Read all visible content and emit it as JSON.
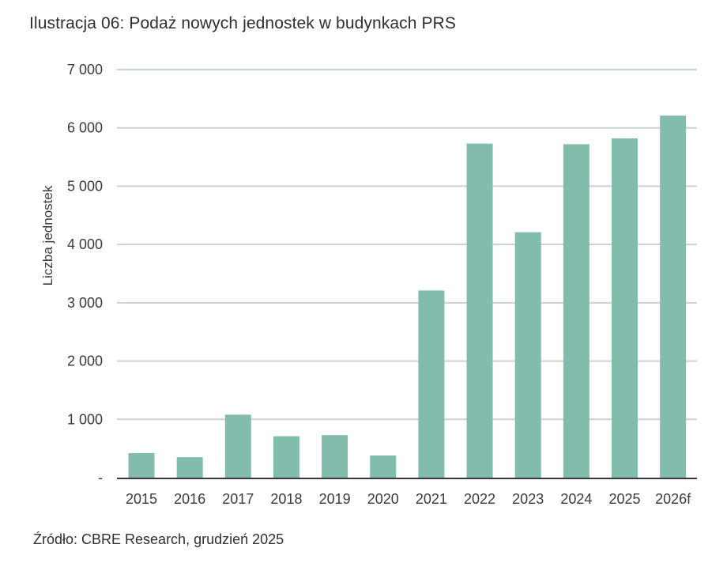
{
  "chart_data": {
    "type": "bar",
    "title": "Ilustracja 06: Podaż nowych jednostek w budynkach PRS",
    "xlabel": "",
    "ylabel": "Liczba jednostek",
    "categories": [
      "2015",
      "2016",
      "2017",
      "2018",
      "2019",
      "2020",
      "2021",
      "2022",
      "2023",
      "2024",
      "2025",
      "2026f"
    ],
    "values": [
      420,
      350,
      1080,
      710,
      730,
      380,
      3210,
      5730,
      4210,
      5720,
      5820,
      6210
    ],
    "ylim": [
      0,
      7000
    ],
    "yticks": [
      0,
      1000,
      2000,
      3000,
      4000,
      5000,
      6000,
      7000
    ],
    "ytick_labels": [
      "-",
      "1 000",
      "2 000",
      "3 000",
      "4 000",
      "5 000",
      "6 000",
      "7 000"
    ],
    "grid": true,
    "legend": "none",
    "bar_color": "#82bcad",
    "grid_color": "#c9d3d1",
    "axis_color": "#3a3a3a"
  },
  "source": "Źródło: CBRE Research, grudzień 2025"
}
